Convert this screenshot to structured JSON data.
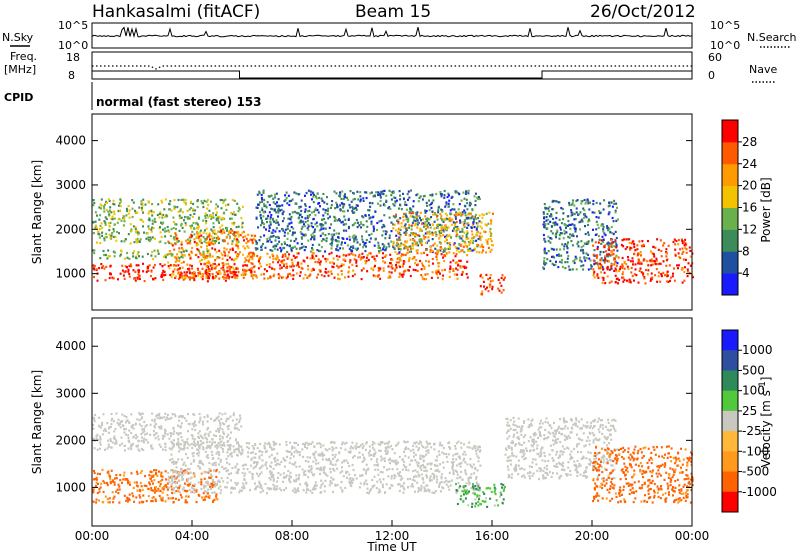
{
  "header": {
    "title": "Hankasalmi (fitACF)",
    "beam": "Beam 15",
    "date": "26/Oct/2012"
  },
  "strips": {
    "nsky_label": "N.Sky",
    "nsearch_label": "N.Search",
    "noise_ticks": [
      "10^5",
      "10^0"
    ],
    "freq_label_1": "Freq.",
    "freq_label_2": "[MHz]",
    "freq_ticks": [
      "18",
      "8"
    ],
    "nave_label": "Nave",
    "nave_ticks": [
      "60",
      "0"
    ],
    "cpid_label": "CPID",
    "cpid_text": "normal (fast stereo) 153"
  },
  "colors": {
    "power": [
      "#1a1aff",
      "#1f4fa0",
      "#3c8c5a",
      "#6ab04c",
      "#f4c300",
      "#ff9a00",
      "#ff5a00",
      "#ff0000"
    ],
    "velocity": [
      "#ff0000",
      "#ff6200",
      "#ff9a1a",
      "#ffb83a",
      "#c8c8c0",
      "#52c83c",
      "#2f8a5a",
      "#2e4fa0",
      "#1a1aff"
    ]
  },
  "chart_data": [
    {
      "type": "heatmap",
      "title": "",
      "xlabel": "Time UT",
      "ylabel": "Slant Range [km]",
      "xticks": [
        "00:00",
        "04:00",
        "08:00",
        "12:00",
        "16:00",
        "20:00",
        "00:00"
      ],
      "yticks": [
        "1000",
        "2000",
        "3000",
        "4000"
      ],
      "xlim": [
        0,
        24
      ],
      "ylim": [
        180,
        4600
      ],
      "colorbar_label": "Power [dB]",
      "colorbar_ticks": [
        "4",
        "8",
        "12",
        "16",
        "20",
        "24",
        "28"
      ],
      "colorbar_range": [
        0,
        32
      ],
      "scatter_regions": [
        {
          "t0": 0.0,
          "t1": 5.8,
          "r0": 850,
          "r1": 1250,
          "level": 30
        },
        {
          "t0": 0.0,
          "t1": 5.0,
          "r0": 1350,
          "r1": 1550,
          "level": 14
        },
        {
          "t0": 0.0,
          "t1": 6.0,
          "r0": 1700,
          "r1": 2700,
          "level": 14
        },
        {
          "t0": 3.0,
          "t1": 6.5,
          "r0": 900,
          "r1": 2000,
          "level": 24
        },
        {
          "t0": 6.0,
          "t1": 15.0,
          "r0": 900,
          "r1": 1500,
          "level": 26
        },
        {
          "t0": 6.5,
          "t1": 15.5,
          "r0": 1500,
          "r1": 2900,
          "level": 8
        },
        {
          "t0": 12.0,
          "t1": 16.0,
          "r0": 1500,
          "r1": 2400,
          "level": 20
        },
        {
          "t0": 15.5,
          "t1": 16.5,
          "r0": 550,
          "r1": 1000,
          "level": 28
        },
        {
          "t0": 18.0,
          "t1": 21.0,
          "r0": 1100,
          "r1": 2700,
          "level": 8
        },
        {
          "t0": 20.0,
          "t1": 24.0,
          "r0": 800,
          "r1": 1800,
          "level": 28
        }
      ]
    },
    {
      "type": "heatmap",
      "title": "",
      "xlabel": "Time UT",
      "ylabel": "Slant Range [km]",
      "xticks": [
        "00:00",
        "04:00",
        "08:00",
        "12:00",
        "16:00",
        "20:00",
        "00:00"
      ],
      "yticks": [
        "1000",
        "2000",
        "3000",
        "4000"
      ],
      "xlim": [
        0,
        24
      ],
      "ylim": [
        180,
        4600
      ],
      "colorbar_label": "Velocity [m s^-1]",
      "colorbar_ticks": [
        "1000",
        "500",
        "100",
        "25",
        "-25",
        "-100",
        "-500",
        "-1000"
      ],
      "scatter_regions": [
        {
          "t0": 0.0,
          "t1": 6.0,
          "r0": 1800,
          "r1": 2600,
          "velocity": 0
        },
        {
          "t0": 0.0,
          "t1": 5.0,
          "r0": 700,
          "r1": 1400,
          "velocity": -150
        },
        {
          "t0": 3.0,
          "t1": 15.5,
          "r0": 900,
          "r1": 2000,
          "velocity": 0
        },
        {
          "t0": 14.5,
          "t1": 16.5,
          "r0": 600,
          "r1": 1100,
          "velocity": 80
        },
        {
          "t0": 16.5,
          "t1": 21.0,
          "r0": 1200,
          "r1": 2500,
          "velocity": 0
        },
        {
          "t0": 20.0,
          "t1": 24.0,
          "r0": 700,
          "r1": 1900,
          "velocity": -200
        }
      ]
    }
  ]
}
